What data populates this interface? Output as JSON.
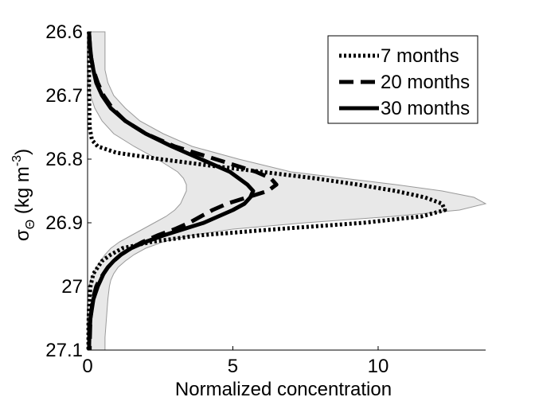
{
  "chart_data": {
    "type": "line",
    "xlabel": "Normalized concentration",
    "ylabel": {
      "main": "σ",
      "sub": "Θ",
      "units_pre": " (kg m",
      "units_sup": "-3",
      "units_post": ")"
    },
    "xlim": [
      0,
      13.7
    ],
    "ylim": [
      26.6,
      27.1
    ],
    "y_reversed": true,
    "x_ticks": [
      {
        "value": 0,
        "label": "0"
      },
      {
        "value": 5,
        "label": "5"
      },
      {
        "value": 10,
        "label": "10"
      }
    ],
    "y_ticks": [
      {
        "value": 26.6,
        "label": "26.6"
      },
      {
        "value": 26.7,
        "label": "26.7"
      },
      {
        "value": 26.8,
        "label": "26.8"
      },
      {
        "value": 26.9,
        "label": "26.9"
      },
      {
        "value": 27.0,
        "label": "27"
      },
      {
        "value": 27.1,
        "label": "27.1"
      }
    ],
    "legend_position": "top-right",
    "series": [
      {
        "name": "7 months",
        "style": "dotted",
        "sigma": [
          26.6,
          26.65,
          26.7,
          26.75,
          26.77,
          26.78,
          26.79,
          26.8,
          26.81,
          26.82,
          26.83,
          26.84,
          26.85,
          26.86,
          26.87,
          26.88,
          26.89,
          26.9,
          26.91,
          26.92,
          26.93,
          26.94,
          26.95,
          26.96,
          26.97,
          26.98,
          27.0,
          27.03,
          27.06,
          27.1
        ],
        "values": [
          0.05,
          0.05,
          0.05,
          0.07,
          0.15,
          0.35,
          1.0,
          2.5,
          4.2,
          6.0,
          7.8,
          9.3,
          10.6,
          11.6,
          12.2,
          12.3,
          11.5,
          9.5,
          6.5,
          3.8,
          2.2,
          1.2,
          0.8,
          0.5,
          0.35,
          0.2,
          0.1,
          0.05,
          0.03,
          0.03
        ]
      },
      {
        "name": "20 months",
        "style": "dashed",
        "sigma": [
          26.6,
          26.62,
          26.64,
          26.66,
          26.68,
          26.7,
          26.72,
          26.74,
          26.76,
          26.78,
          26.8,
          26.82,
          26.83,
          26.84,
          26.85,
          26.86,
          26.87,
          26.88,
          26.89,
          26.9,
          26.91,
          26.92,
          26.93,
          26.94,
          26.95,
          26.96,
          26.97,
          26.98,
          26.99,
          27.0,
          27.02,
          27.05,
          27.08,
          27.1
        ],
        "values": [
          0.05,
          0.08,
          0.12,
          0.2,
          0.35,
          0.55,
          0.85,
          1.3,
          2.0,
          3.0,
          4.4,
          5.8,
          6.3,
          6.5,
          6.2,
          5.5,
          4.8,
          4.3,
          3.9,
          3.5,
          3.0,
          2.4,
          1.9,
          1.5,
          1.15,
          0.9,
          0.7,
          0.55,
          0.4,
          0.3,
          0.18,
          0.1,
          0.08,
          0.07
        ]
      },
      {
        "name": "30 months",
        "style": "solid",
        "sigma": [
          26.6,
          26.62,
          26.64,
          26.66,
          26.68,
          26.7,
          26.72,
          26.74,
          26.76,
          26.78,
          26.8,
          26.82,
          26.84,
          26.85,
          26.86,
          26.87,
          26.88,
          26.89,
          26.9,
          26.91,
          26.92,
          26.93,
          26.94,
          26.95,
          26.96,
          26.97,
          26.98,
          27.0,
          27.02,
          27.05,
          27.08,
          27.1
        ],
        "values": [
          0.05,
          0.08,
          0.12,
          0.2,
          0.3,
          0.5,
          0.8,
          1.3,
          2.0,
          2.9,
          3.9,
          4.9,
          5.5,
          5.7,
          5.6,
          5.4,
          5.0,
          4.5,
          4.0,
          3.3,
          2.6,
          2.0,
          1.5,
          1.15,
          0.9,
          0.7,
          0.55,
          0.35,
          0.2,
          0.1,
          0.06,
          0.05
        ]
      }
    ],
    "envelope": {
      "sigma": [
        26.6,
        26.62,
        26.64,
        26.66,
        26.68,
        26.7,
        26.72,
        26.74,
        26.76,
        26.78,
        26.8,
        26.82,
        26.83,
        26.84,
        26.85,
        26.86,
        26.87,
        26.88,
        26.89,
        26.9,
        26.91,
        26.92,
        26.93,
        26.94,
        26.95,
        26.96,
        26.97,
        26.98,
        26.99,
        27.0,
        27.02,
        27.05,
        27.08,
        27.1
      ],
      "min": [
        0.0,
        0.0,
        0.0,
        0.02,
        0.05,
        0.1,
        0.25,
        0.5,
        0.9,
        1.6,
        2.4,
        3.1,
        3.3,
        3.4,
        3.4,
        3.3,
        3.2,
        3.0,
        2.7,
        2.3,
        1.9,
        1.5,
        1.1,
        0.8,
        0.6,
        0.45,
        0.3,
        0.2,
        0.1,
        0.05,
        0.0,
        0.0,
        0.0,
        0.0
      ],
      "max": [
        0.6,
        0.6,
        0.6,
        0.6,
        0.7,
        0.9,
        1.3,
        1.8,
        2.6,
        3.6,
        5.2,
        7.0,
        8.8,
        10.6,
        12.2,
        13.3,
        13.7,
        12.8,
        10.5,
        7.5,
        5.0,
        3.5,
        2.6,
        2.0,
        1.6,
        1.3,
        1.05,
        0.9,
        0.8,
        0.75,
        0.7,
        0.65,
        0.6,
        0.6
      ]
    }
  }
}
